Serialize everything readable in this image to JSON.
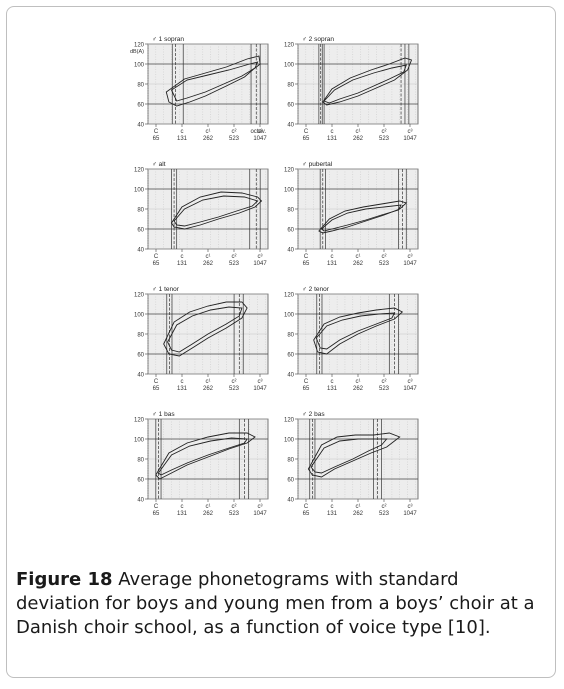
{
  "caption": {
    "label": "Figure 18",
    "text": " Average phonetograms with standard deviation for boys and young men from a boys’ choir at a Danish choir school, as a function of voice type [10]."
  },
  "chart_data": {
    "type": "line",
    "ylabel": "dB(A)",
    "xlabel_suffix": "octav.",
    "y_ticks": [
      40,
      60,
      80,
      100,
      120
    ],
    "x_ticks": [
      {
        "note": "C",
        "hz": "65"
      },
      {
        "note": "c",
        "hz": "131"
      },
      {
        "note": "c¹",
        "hz": "262"
      },
      {
        "note": "c²",
        "hz": "523"
      },
      {
        "note": "c³",
        "hz": "1047"
      }
    ],
    "xlim_octaves": [
      0,
      4.6
    ],
    "ylim": [
      40,
      120
    ],
    "panels": [
      {
        "title": "♂ 1 sopran",
        "vlines": [
          0.93,
          1.05,
          1.35,
          3.95,
          4.15,
          4.3
        ],
        "outer": [
          [
            0.7,
            72
          ],
          [
            1.4,
            85
          ],
          [
            2.2,
            91
          ],
          [
            3,
            97
          ],
          [
            3.8,
            105
          ],
          [
            4.25,
            108
          ],
          [
            4.3,
            100
          ],
          [
            4.05,
            95
          ],
          [
            3.7,
            87
          ],
          [
            3,
            78
          ],
          [
            2.2,
            68
          ],
          [
            1.6,
            62
          ],
          [
            1.1,
            58
          ],
          [
            0.8,
            62
          ]
        ],
        "inner": [
          [
            0.9,
            74
          ],
          [
            1.5,
            84
          ],
          [
            2.3,
            89
          ],
          [
            3.1,
            94
          ],
          [
            3.9,
            100
          ],
          [
            4.2,
            102
          ],
          [
            4.1,
            96
          ],
          [
            3.6,
            88
          ],
          [
            2.9,
            80
          ],
          [
            2.2,
            72
          ],
          [
            1.5,
            66
          ],
          [
            1.1,
            63
          ]
        ]
      },
      {
        "title": "♂ 2 sopran",
        "vlines": [
          0.8,
          0.87,
          0.93,
          1.0,
          3.95,
          4.1,
          4.25
        ],
        "outer": [
          [
            0.95,
            62
          ],
          [
            1.3,
            75
          ],
          [
            2,
            86
          ],
          [
            2.8,
            94
          ],
          [
            3.5,
            100
          ],
          [
            4.1,
            106
          ],
          [
            4.35,
            104
          ],
          [
            4.2,
            94
          ],
          [
            3.7,
            84
          ],
          [
            3,
            76
          ],
          [
            2.3,
            68
          ],
          [
            1.6,
            62
          ],
          [
            1.1,
            59
          ]
        ],
        "inner": [
          [
            1.0,
            63
          ],
          [
            1.4,
            74
          ],
          [
            2.1,
            84
          ],
          [
            2.9,
            91
          ],
          [
            3.6,
            96
          ],
          [
            4.15,
            99
          ],
          [
            4.05,
            92
          ],
          [
            3.5,
            85
          ],
          [
            2.9,
            78
          ],
          [
            2.3,
            71
          ],
          [
            1.6,
            65
          ],
          [
            1.2,
            61
          ]
        ]
      },
      {
        "title": "♂ alt",
        "vlines": [
          0.9,
          1.0,
          1.1,
          3.9,
          4.15,
          4.3
        ],
        "outer": [
          [
            0.9,
            66
          ],
          [
            1.3,
            82
          ],
          [
            2,
            92
          ],
          [
            2.8,
            97
          ],
          [
            3.6,
            96
          ],
          [
            4.2,
            92
          ],
          [
            4.35,
            88
          ],
          [
            4.1,
            82
          ],
          [
            3.5,
            76
          ],
          [
            2.7,
            70
          ],
          [
            2,
            64
          ],
          [
            1.4,
            60
          ],
          [
            1.0,
            62
          ]
        ],
        "inner": [
          [
            1.0,
            68
          ],
          [
            1.4,
            80
          ],
          [
            2.1,
            89
          ],
          [
            2.9,
            93
          ],
          [
            3.7,
            92
          ],
          [
            4.2,
            88
          ],
          [
            4,
            83
          ],
          [
            3.4,
            78
          ],
          [
            2.7,
            72
          ],
          [
            2,
            67
          ],
          [
            1.4,
            63
          ],
          [
            1.1,
            64
          ]
        ]
      },
      {
        "title": "♂ pubertal",
        "vlines": [
          0.85,
          0.95,
          1.05,
          3.85,
          4.0,
          4.15
        ],
        "outer": [
          [
            0.8,
            58
          ],
          [
            1.2,
            70
          ],
          [
            1.8,
            78
          ],
          [
            2.5,
            82
          ],
          [
            3.2,
            85
          ],
          [
            3.9,
            88
          ],
          [
            4.15,
            86
          ],
          [
            3.9,
            80
          ],
          [
            3.3,
            74
          ],
          [
            2.6,
            68
          ],
          [
            1.9,
            62
          ],
          [
            1.3,
            58
          ],
          [
            0.95,
            56
          ]
        ],
        "inner": [
          [
            0.9,
            60
          ],
          [
            1.3,
            69
          ],
          [
            1.9,
            76
          ],
          [
            2.6,
            80
          ],
          [
            3.3,
            82
          ],
          [
            3.95,
            84
          ],
          [
            3.85,
            79
          ],
          [
            3.2,
            74
          ],
          [
            2.6,
            69
          ],
          [
            1.9,
            64
          ],
          [
            1.3,
            60
          ],
          [
            1.0,
            58
          ]
        ]
      },
      {
        "title": "♂ 1 tenor",
        "vlines": [
          0.72,
          0.82,
          0.92,
          3.3,
          3.5,
          3.65
        ],
        "outer": [
          [
            0.6,
            70
          ],
          [
            1,
            92
          ],
          [
            1.6,
            102
          ],
          [
            2.3,
            108
          ],
          [
            3,
            112
          ],
          [
            3.6,
            112
          ],
          [
            3.8,
            106
          ],
          [
            3.6,
            96
          ],
          [
            3,
            86
          ],
          [
            2.3,
            76
          ],
          [
            1.7,
            66
          ],
          [
            1.2,
            58
          ],
          [
            0.8,
            60
          ]
        ],
        "inner": [
          [
            0.75,
            72
          ],
          [
            1.1,
            89
          ],
          [
            1.7,
            98
          ],
          [
            2.4,
            104
          ],
          [
            3.1,
            107
          ],
          [
            3.6,
            106
          ],
          [
            3.5,
            98
          ],
          [
            3,
            90
          ],
          [
            2.3,
            80
          ],
          [
            1.7,
            70
          ],
          [
            1.2,
            62
          ],
          [
            0.9,
            64
          ]
        ]
      },
      {
        "title": "♂ 2 tenor",
        "vlines": [
          0.72,
          0.82,
          0.92,
          3.5,
          3.7,
          3.85
        ],
        "outer": [
          [
            0.6,
            74
          ],
          [
            1,
            90
          ],
          [
            1.6,
            97
          ],
          [
            2.3,
            101
          ],
          [
            3,
            104
          ],
          [
            3.7,
            106
          ],
          [
            4.0,
            102
          ],
          [
            3.7,
            95
          ],
          [
            3,
            88
          ],
          [
            2.3,
            80
          ],
          [
            1.6,
            70
          ],
          [
            1.1,
            60
          ],
          [
            0.75,
            62
          ]
        ],
        "inner": [
          [
            0.7,
            76
          ],
          [
            1.1,
            88
          ],
          [
            1.7,
            94
          ],
          [
            2.4,
            98
          ],
          [
            3.1,
            100
          ],
          [
            3.7,
            101
          ],
          [
            3.6,
            96
          ],
          [
            3,
            90
          ],
          [
            2.3,
            83
          ],
          [
            1.6,
            74
          ],
          [
            1.1,
            65
          ],
          [
            0.85,
            66
          ]
        ]
      },
      {
        "title": "♂ 1 bas",
        "vlines": [
          0.3,
          0.4,
          0.5,
          3.5,
          3.7,
          3.85
        ],
        "outer": [
          [
            0.3,
            64
          ],
          [
            0.8,
            86
          ],
          [
            1.5,
            96
          ],
          [
            2.3,
            102
          ],
          [
            3.1,
            106
          ],
          [
            3.8,
            106
          ],
          [
            4.1,
            102
          ],
          [
            3.8,
            96
          ],
          [
            3.1,
            90
          ],
          [
            2.3,
            82
          ],
          [
            1.5,
            74
          ],
          [
            0.9,
            66
          ],
          [
            0.45,
            60
          ]
        ],
        "inner": [
          [
            0.4,
            66
          ],
          [
            0.9,
            84
          ],
          [
            1.6,
            93
          ],
          [
            2.4,
            98
          ],
          [
            3.2,
            101
          ],
          [
            3.8,
            100
          ],
          [
            3.7,
            96
          ],
          [
            3.1,
            91
          ],
          [
            2.3,
            84
          ],
          [
            1.5,
            76
          ],
          [
            0.9,
            69
          ],
          [
            0.5,
            64
          ]
        ]
      },
      {
        "title": "♂ 2 bas",
        "vlines": [
          0.45,
          0.55,
          0.65,
          2.9,
          3.05,
          3.2
        ],
        "outer": [
          [
            0.4,
            70
          ],
          [
            0.9,
            94
          ],
          [
            1.5,
            102
          ],
          [
            2.2,
            104
          ],
          [
            2.9,
            104
          ],
          [
            3.5,
            106
          ],
          [
            3.9,
            102
          ],
          [
            3.4,
            92
          ],
          [
            2.8,
            86
          ],
          [
            2.1,
            78
          ],
          [
            1.4,
            70
          ],
          [
            0.9,
            62
          ],
          [
            0.55,
            64
          ]
        ],
        "inner": [
          [
            0.5,
            72
          ],
          [
            1.0,
            91
          ],
          [
            1.6,
            98
          ],
          [
            2.3,
            100
          ],
          [
            2.9,
            100
          ],
          [
            3.4,
            100
          ],
          [
            3.2,
            94
          ],
          [
            2.7,
            88
          ],
          [
            2.1,
            80
          ],
          [
            1.4,
            72
          ],
          [
            0.9,
            66
          ],
          [
            0.65,
            67
          ]
        ]
      }
    ]
  }
}
